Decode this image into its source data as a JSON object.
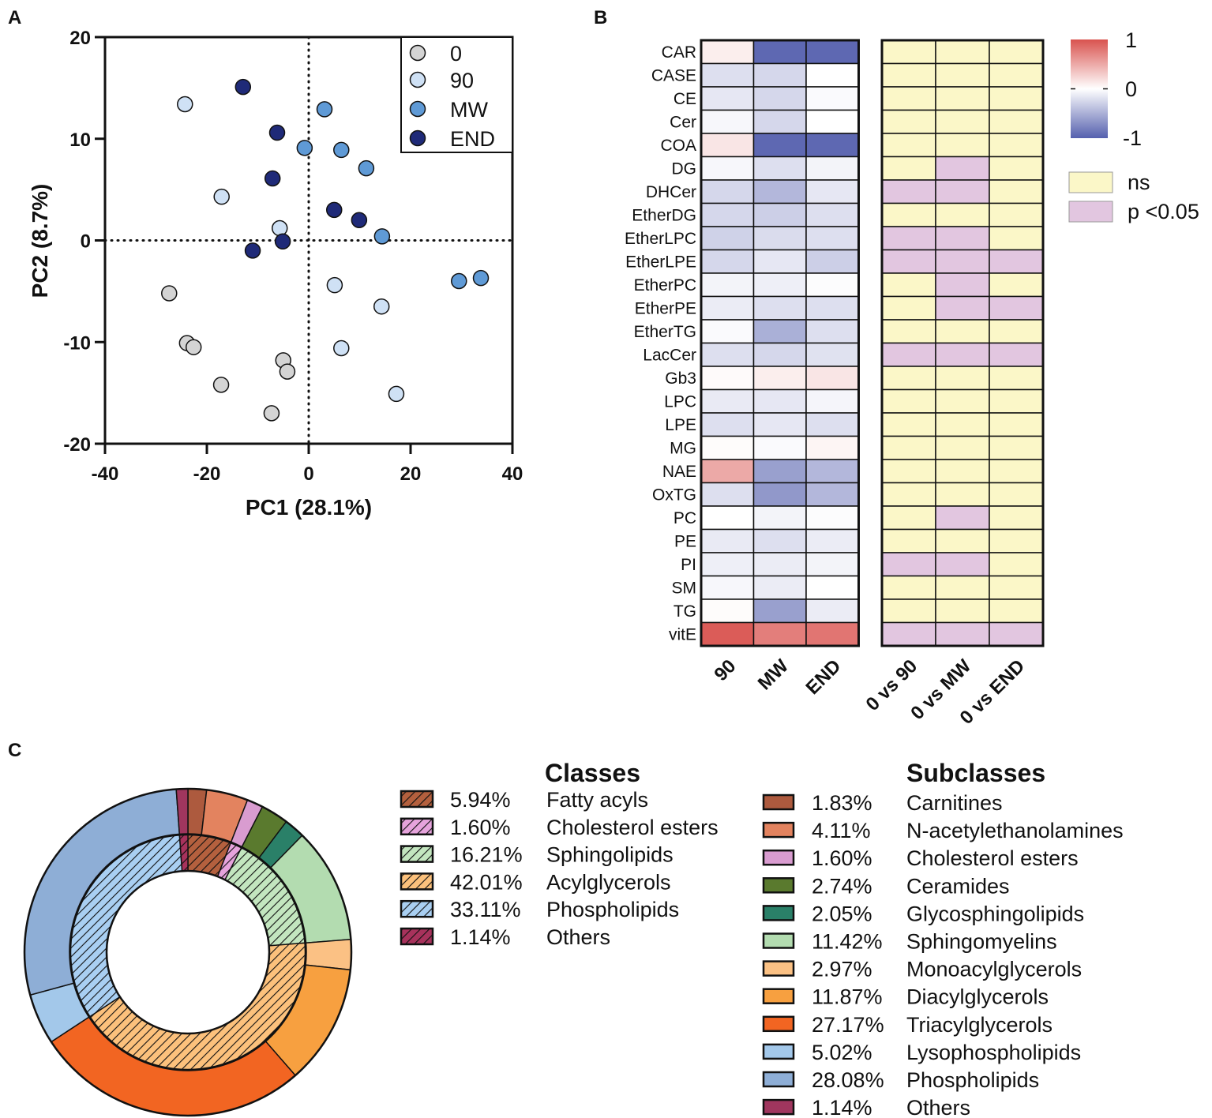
{
  "panel_labels": {
    "a": "A",
    "b": "B",
    "c": "C"
  },
  "chart_data": [
    {
      "type": "scatter",
      "xlabel": "PC1 (28.1%)",
      "ylabel": "PC2 (8.7%)",
      "xlim": [
        -40,
        40
      ],
      "ylim": [
        -20,
        20
      ],
      "xticks": [
        "-40",
        "-20",
        "0",
        "20",
        "40"
      ],
      "yticks": [
        "20",
        "10",
        "0",
        "-10",
        "-20"
      ],
      "legend_position": "top-right",
      "series": [
        {
          "name": "0",
          "color": "#d4d4d4",
          "points": [
            [
              -27.4,
              -5.2
            ],
            [
              -23.9,
              -10.1
            ],
            [
              -22.6,
              -10.5
            ],
            [
              -17.2,
              -14.2
            ],
            [
              -5.0,
              -11.8
            ],
            [
              -4.2,
              -12.9
            ],
            [
              -7.3,
              -17.0
            ]
          ]
        },
        {
          "name": "90",
          "color": "#cfe1f5",
          "points": [
            [
              -24.3,
              13.4
            ],
            [
              -17.1,
              4.3
            ],
            [
              -5.7,
              1.2
            ],
            [
              5.1,
              -4.4
            ],
            [
              14.3,
              -6.5
            ],
            [
              6.4,
              -10.6
            ],
            [
              17.2,
              -15.1
            ]
          ]
        },
        {
          "name": "MW",
          "color": "#5f9ad6",
          "points": [
            [
              3.1,
              12.9
            ],
            [
              -0.8,
              9.1
            ],
            [
              6.4,
              8.9
            ],
            [
              11.3,
              7.1
            ],
            [
              14.4,
              0.4
            ],
            [
              29.5,
              -4.0
            ],
            [
              33.8,
              -3.7
            ]
          ]
        },
        {
          "name": "END",
          "color": "#1f2a78",
          "points": [
            [
              -12.9,
              15.1
            ],
            [
              -6.2,
              10.6
            ],
            [
              -7.1,
              6.1
            ],
            [
              5.0,
              3.0
            ],
            [
              9.9,
              2.0
            ],
            [
              -5.1,
              -0.1
            ],
            [
              -11.0,
              -1.0
            ]
          ]
        }
      ]
    },
    {
      "type": "heatmap",
      "rows": [
        "CAR",
        "CASE",
        "CE",
        "Cer",
        "COA",
        "DG",
        "DHCer",
        "EtherDG",
        "EtherLPC",
        "EtherLPE",
        "EtherPC",
        "EtherPE",
        "EtherTG",
        "LacCer",
        "Gb3",
        "LPC",
        "LPE",
        "MG",
        "NAE",
        "OxTG",
        "PC",
        "PE",
        "PI",
        "SM",
        "TG",
        "vitE"
      ],
      "columns": [
        "90",
        "MW",
        "END"
      ],
      "values": [
        [
          0.1,
          -0.95,
          -0.95
        ],
        [
          -0.2,
          -0.25,
          0
        ],
        [
          -0.15,
          -0.25,
          -0.03
        ],
        [
          -0.05,
          -0.25,
          0
        ],
        [
          0.15,
          -0.95,
          -0.95
        ],
        [
          -0.05,
          -0.2,
          -0.07
        ],
        [
          -0.25,
          -0.45,
          -0.15
        ],
        [
          -0.25,
          -0.3,
          -0.2
        ],
        [
          -0.28,
          -0.22,
          -0.2
        ],
        [
          -0.25,
          -0.15,
          -0.3
        ],
        [
          -0.07,
          -0.1,
          -0.02
        ],
        [
          -0.12,
          -0.2,
          -0.2
        ],
        [
          -0.03,
          -0.5,
          -0.2
        ],
        [
          -0.2,
          -0.25,
          -0.18
        ],
        [
          0.03,
          0.1,
          0.15
        ],
        [
          -0.13,
          -0.15,
          -0.06
        ],
        [
          -0.2,
          -0.15,
          -0.2
        ],
        [
          0.02,
          -0.03,
          0.06
        ],
        [
          0.5,
          -0.6,
          -0.45
        ],
        [
          -0.2,
          -0.65,
          -0.45
        ],
        [
          0,
          -0.07,
          -0.02
        ],
        [
          -0.13,
          -0.2,
          -0.12
        ],
        [
          -0.1,
          -0.12,
          -0.07
        ],
        [
          -0.05,
          -0.12,
          0
        ],
        [
          0.02,
          -0.6,
          -0.12
        ],
        [
          0.95,
          0.75,
          0.8
        ]
      ],
      "zlim": [
        -1,
        1
      ],
      "colorbar_ticks": [
        "1",
        "0",
        "-1"
      ],
      "colors": {
        "low": "#5560ae",
        "mid": "#ffffff",
        "high": "#d9534f"
      },
      "significance": {
        "columns": [
          "0 vs 90",
          "0 vs MW",
          "0 vs END"
        ],
        "values": [
          [
            0,
            0,
            0
          ],
          [
            0,
            0,
            0
          ],
          [
            0,
            0,
            0
          ],
          [
            0,
            0,
            0
          ],
          [
            0,
            0,
            0
          ],
          [
            0,
            1,
            0
          ],
          [
            1,
            1,
            0
          ],
          [
            0,
            0,
            0
          ],
          [
            1,
            1,
            0
          ],
          [
            1,
            1,
            1
          ],
          [
            0,
            1,
            0
          ],
          [
            0,
            1,
            1
          ],
          [
            0,
            0,
            0
          ],
          [
            1,
            1,
            1
          ],
          [
            0,
            0,
            0
          ],
          [
            0,
            0,
            0
          ],
          [
            0,
            0,
            0
          ],
          [
            0,
            0,
            0
          ],
          [
            0,
            0,
            0
          ],
          [
            0,
            0,
            0
          ],
          [
            0,
            1,
            0
          ],
          [
            0,
            0,
            0
          ],
          [
            1,
            1,
            0
          ],
          [
            0,
            0,
            0
          ],
          [
            0,
            0,
            0
          ],
          [
            1,
            1,
            1
          ]
        ],
        "legend": [
          {
            "label": "ns",
            "color": "#fbf7c8"
          },
          {
            "label": "p <0.05",
            "color": "#e2c6e0"
          }
        ]
      }
    },
    {
      "type": "pie",
      "classes_title": "Classes",
      "subclasses_title": "Subclasses",
      "classes": [
        {
          "label": "Fatty acyls",
          "pct": "5.94%",
          "value": 5.94,
          "color": "#b4603e"
        },
        {
          "label": "Cholesterol esters",
          "pct": "1.60%",
          "value": 1.6,
          "color": "#e6a3dc"
        },
        {
          "label": "Sphingolipids",
          "pct": "16.21%",
          "value": 16.21,
          "color": "#c3e6bf"
        },
        {
          "label": "Acylglycerols",
          "pct": "42.01%",
          "value": 42.01,
          "color": "#fcc17c"
        },
        {
          "label": "Phospholipids",
          "pct": "33.11%",
          "value": 33.11,
          "color": "#a9cff2"
        },
        {
          "label": "Others",
          "pct": "1.14%",
          "value": 1.14,
          "color": "#a8325c"
        }
      ],
      "subclasses": [
        {
          "label": "Carnitines",
          "pct": "1.83%",
          "value": 1.83,
          "color": "#ad5a3e"
        },
        {
          "label": "N-acetylethanolamines",
          "pct": "4.11%",
          "value": 4.11,
          "color": "#e3835f"
        },
        {
          "label": "Cholesterol esters",
          "pct": "1.60%",
          "value": 1.6,
          "color": "#d99cd0"
        },
        {
          "label": "Ceramides",
          "pct": "2.74%",
          "value": 2.74,
          "color": "#5a7a2e"
        },
        {
          "label": "Glycosphingolipids",
          "pct": "2.05%",
          "value": 2.05,
          "color": "#2a8068"
        },
        {
          "label": "Sphingomyelins",
          "pct": "11.42%",
          "value": 11.42,
          "color": "#b3dcb0"
        },
        {
          "label": "Monoacylglycerols",
          "pct": "2.97%",
          "value": 2.97,
          "color": "#fbc184"
        },
        {
          "label": "Diacylglycerols",
          "pct": "11.87%",
          "value": 11.87,
          "color": "#f7a040"
        },
        {
          "label": "Triacylglycerols",
          "pct": "27.17%",
          "value": 27.17,
          "color": "#f26522"
        },
        {
          "label": "Lysophospholipids",
          "pct": "5.02%",
          "value": 5.02,
          "color": "#a3c8ea"
        },
        {
          "label": "Phospholipids",
          "pct": "28.08%",
          "value": 28.08,
          "color": "#8eaed6"
        },
        {
          "label": "Others",
          "pct": "1.14%",
          "value": 1.14,
          "color": "#a0365e"
        }
      ]
    }
  ]
}
